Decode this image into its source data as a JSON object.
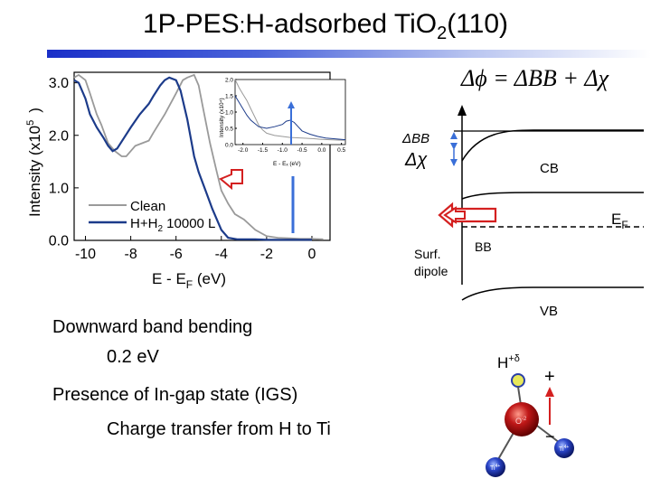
{
  "title": {
    "main": "1P-PES",
    "sep": ":",
    "rest": "H-adsorbed TiO",
    "sub": "2",
    "tail": "(110)"
  },
  "colors": {
    "clean": "#9a9a9a",
    "h2": "#1c3b8a",
    "arrow_red": "#d42020",
    "arrow_blue": "#3a6fd8",
    "accent_bar": "#1a2fc8"
  },
  "main_chart": {
    "ylabel_main": "Intensity  (x10",
    "ylabel_exp": "5",
    "ylabel_close": ")",
    "xlabel_main": "E - E",
    "xlabel_sub": "F",
    "xlabel_unit": " (eV)",
    "yticks": [
      "0.0",
      "1.0",
      "2.0",
      "3.0"
    ],
    "xticks": [
      "-10",
      "-8",
      "-6",
      "-4",
      "-2",
      "0"
    ],
    "legend": {
      "clean": "Clean",
      "h2": "H+H",
      "h2_sub": "2",
      "h2_rest": " 10000 L"
    }
  },
  "inset_chart": {
    "ylabel": "Intensity (x10⁴)",
    "xlabel": "E - Eₓ (eV)",
    "yticks": [
      "0.0",
      "0.5",
      "1.0",
      "1.5",
      "2.0"
    ],
    "xticks": [
      "-2.0",
      "-1.5",
      "-1.0",
      "-0.5",
      "0.0",
      "0.5"
    ]
  },
  "chart_data": [
    {
      "type": "line",
      "title": "",
      "xlabel": "E - EF (eV)",
      "ylabel": "Intensity (x10^5)",
      "xlim": [
        -10.5,
        0.8
      ],
      "ylim": [
        0,
        3.2
      ],
      "series": [
        {
          "name": "Clean",
          "points": [
            [
              -10.5,
              3.1
            ],
            [
              -10.3,
              3.15
            ],
            [
              -10,
              3.05
            ],
            [
              -9.8,
              2.8
            ],
            [
              -9.5,
              2.4
            ],
            [
              -9.3,
              2.2
            ],
            [
              -9,
              1.85
            ],
            [
              -8.7,
              1.7
            ],
            [
              -8.4,
              1.6
            ],
            [
              -8.2,
              1.6
            ],
            [
              -8,
              1.7
            ],
            [
              -7.8,
              1.8
            ],
            [
              -7.5,
              1.85
            ],
            [
              -7.2,
              1.9
            ],
            [
              -7,
              2.05
            ],
            [
              -6.5,
              2.4
            ],
            [
              -6,
              2.8
            ],
            [
              -5.7,
              3.05
            ],
            [
              -5.5,
              3.1
            ],
            [
              -5.2,
              3.15
            ],
            [
              -5,
              2.95
            ],
            [
              -4.8,
              2.5
            ],
            [
              -4.5,
              1.85
            ],
            [
              -4.2,
              1.3
            ],
            [
              -4,
              0.95
            ],
            [
              -3.7,
              0.7
            ],
            [
              -3.4,
              0.5
            ],
            [
              -3,
              0.4
            ],
            [
              -2.5,
              0.2
            ],
            [
              -2,
              0.08
            ],
            [
              -1.5,
              0.05
            ],
            [
              -1,
              0.04
            ],
            [
              -0.5,
              0.03
            ],
            [
              0,
              0.03
            ],
            [
              0.5,
              0.02
            ]
          ]
        },
        {
          "name": "H+H2 10000 L",
          "points": [
            [
              -10.5,
              3.05
            ],
            [
              -10.3,
              3.0
            ],
            [
              -10,
              2.7
            ],
            [
              -9.8,
              2.4
            ],
            [
              -9.5,
              2.15
            ],
            [
              -9.2,
              1.95
            ],
            [
              -9,
              1.8
            ],
            [
              -8.8,
              1.7
            ],
            [
              -8.6,
              1.75
            ],
            [
              -8.3,
              1.95
            ],
            [
              -8,
              2.15
            ],
            [
              -7.6,
              2.4
            ],
            [
              -7.2,
              2.6
            ],
            [
              -7,
              2.75
            ],
            [
              -6.7,
              2.95
            ],
            [
              -6.5,
              3.05
            ],
            [
              -6.3,
              3.1
            ],
            [
              -6,
              3.05
            ],
            [
              -5.8,
              2.85
            ],
            [
              -5.5,
              2.3
            ],
            [
              -5.2,
              1.6
            ],
            [
              -5,
              1.3
            ],
            [
              -4.7,
              0.95
            ],
            [
              -4.4,
              0.6
            ],
            [
              -4,
              0.2
            ],
            [
              -3.7,
              0.05
            ],
            [
              -3.3,
              0.02
            ],
            [
              -3,
              0.02
            ],
            [
              -2.5,
              0.02
            ],
            [
              -2,
              0.01
            ],
            [
              0,
              0.01
            ]
          ]
        }
      ]
    },
    {
      "type": "line",
      "title": "",
      "xlabel": "E - EF (eV)",
      "ylabel": "Intensity (x10^4)",
      "xlim": [
        -2.2,
        0.6
      ],
      "ylim": [
        0,
        2.0
      ],
      "series": [
        {
          "name": "Clean",
          "points": [
            [
              -2.2,
              2.0
            ],
            [
              -2.1,
              1.75
            ],
            [
              -2.0,
              1.55
            ],
            [
              -1.9,
              1.35
            ],
            [
              -1.8,
              1.1
            ],
            [
              -1.7,
              0.85
            ],
            [
              -1.6,
              0.6
            ],
            [
              -1.5,
              0.45
            ],
            [
              -1.4,
              0.35
            ],
            [
              -1.2,
              0.28
            ],
            [
              -1.0,
              0.25
            ],
            [
              -0.8,
              0.22
            ],
            [
              -0.5,
              0.2
            ],
            [
              -0.2,
              0.18
            ],
            [
              0,
              0.16
            ],
            [
              0.2,
              0.15
            ],
            [
              0.4,
              0.14
            ],
            [
              0.6,
              0.13
            ]
          ]
        },
        {
          "name": "H+H2 10000 L",
          "points": [
            [
              -2.2,
              1.5
            ],
            [
              -2.1,
              1.3
            ],
            [
              -2.0,
              1.1
            ],
            [
              -1.9,
              0.9
            ],
            [
              -1.8,
              0.75
            ],
            [
              -1.6,
              0.55
            ],
            [
              -1.4,
              0.5
            ],
            [
              -1.2,
              0.55
            ],
            [
              -1.0,
              0.62
            ],
            [
              -0.9,
              0.72
            ],
            [
              -0.8,
              0.75
            ],
            [
              -0.7,
              0.68
            ],
            [
              -0.6,
              0.55
            ],
            [
              -0.5,
              0.42
            ],
            [
              -0.3,
              0.32
            ],
            [
              -0.1,
              0.25
            ],
            [
              0.1,
              0.2
            ],
            [
              0.3,
              0.18
            ],
            [
              0.6,
              0.15
            ]
          ]
        }
      ]
    }
  ],
  "diagram": {
    "equation": "Δϕ = ΔBB + Δχ",
    "delta_bb": "ΔBB",
    "delta_chi": "Δχ",
    "cb": "CB",
    "ef_main": "E",
    "ef_sub": "F",
    "bb": "BB",
    "vb": "VB",
    "surf": "Surf.",
    "dipole": "dipole",
    "h_label": "H",
    "h_sup": "+δ",
    "plus": "+",
    "minus": "−",
    "o_label": "O",
    "o_sup": "-2",
    "ti_label": "Ti",
    "ti_sup": "4+"
  },
  "notes": {
    "line1": "Downward band bending",
    "line2": "0.2 eV",
    "line3": "Presence of In-gap state (IGS)",
    "line4": "Charge transfer from H to Ti"
  }
}
